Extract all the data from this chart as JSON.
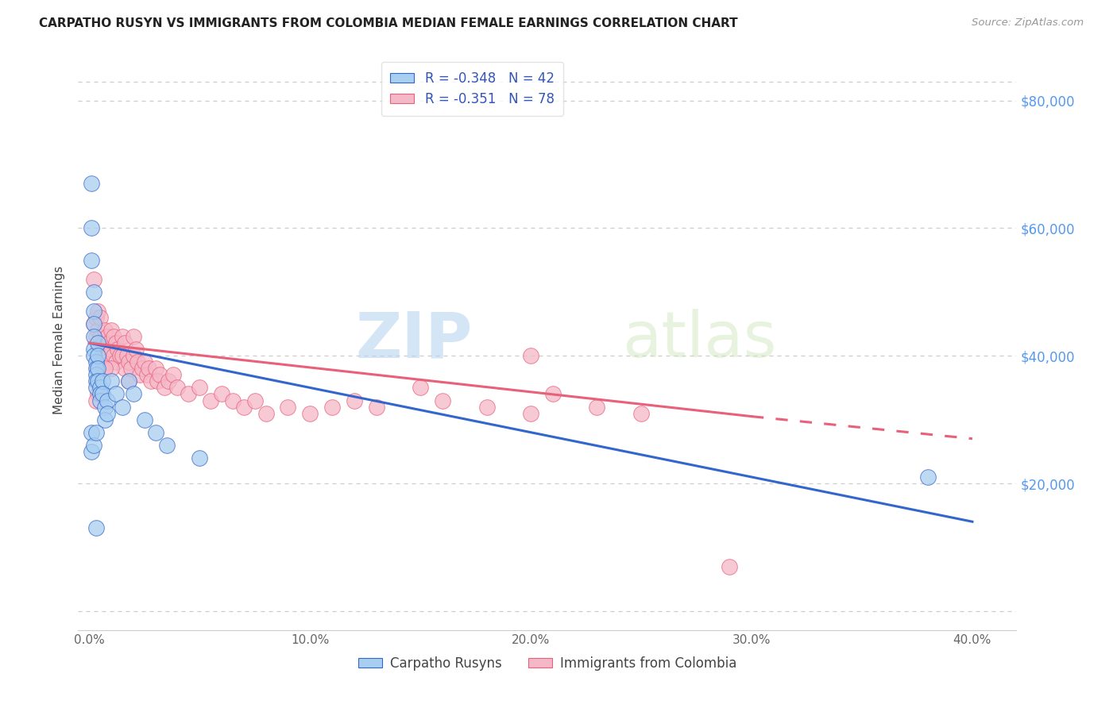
{
  "title": "CARPATHO RUSYN VS IMMIGRANTS FROM COLOMBIA MEDIAN FEMALE EARNINGS CORRELATION CHART",
  "source": "Source: ZipAtlas.com",
  "ylabel": "Median Female Earnings",
  "ytick_labels": [
    "$20,000",
    "$40,000",
    "$60,000",
    "$80,000"
  ],
  "ytick_values": [
    20000,
    40000,
    60000,
    80000
  ],
  "legend_label_blue": "Carpatho Rusyns",
  "legend_label_pink": "Immigrants from Colombia",
  "blue_color": "#a8cef0",
  "pink_color": "#f5b8c8",
  "blue_line_color": "#3366cc",
  "pink_line_color": "#e8607a",
  "blue_R": "-0.348",
  "blue_N": "42",
  "pink_R": "-0.351",
  "pink_N": "78",
  "blue_x": [
    0.001,
    0.001,
    0.001,
    0.002,
    0.002,
    0.002,
    0.002,
    0.002,
    0.002,
    0.003,
    0.003,
    0.003,
    0.003,
    0.003,
    0.004,
    0.004,
    0.004,
    0.004,
    0.005,
    0.005,
    0.005,
    0.006,
    0.006,
    0.007,
    0.007,
    0.008,
    0.008,
    0.01,
    0.012,
    0.015,
    0.018,
    0.02,
    0.025,
    0.03,
    0.035,
    0.05,
    0.001,
    0.001,
    0.002,
    0.003,
    0.38,
    0.003
  ],
  "blue_y": [
    67000,
    60000,
    55000,
    50000,
    47000,
    45000,
    43000,
    41000,
    40000,
    39000,
    38000,
    37000,
    36000,
    35000,
    42000,
    40000,
    38000,
    36000,
    35000,
    34000,
    33000,
    36000,
    34000,
    32000,
    30000,
    33000,
    31000,
    36000,
    34000,
    32000,
    36000,
    34000,
    30000,
    28000,
    26000,
    24000,
    28000,
    25000,
    26000,
    28000,
    21000,
    13000
  ],
  "pink_x": [
    0.002,
    0.002,
    0.003,
    0.003,
    0.004,
    0.004,
    0.004,
    0.005,
    0.005,
    0.006,
    0.006,
    0.006,
    0.007,
    0.007,
    0.008,
    0.008,
    0.008,
    0.009,
    0.009,
    0.01,
    0.01,
    0.011,
    0.011,
    0.012,
    0.012,
    0.013,
    0.014,
    0.015,
    0.015,
    0.016,
    0.016,
    0.017,
    0.018,
    0.018,
    0.019,
    0.02,
    0.02,
    0.021,
    0.022,
    0.023,
    0.024,
    0.025,
    0.026,
    0.027,
    0.028,
    0.03,
    0.031,
    0.032,
    0.034,
    0.036,
    0.038,
    0.04,
    0.045,
    0.05,
    0.055,
    0.06,
    0.065,
    0.07,
    0.075,
    0.08,
    0.09,
    0.1,
    0.11,
    0.12,
    0.13,
    0.15,
    0.16,
    0.18,
    0.2,
    0.21,
    0.23,
    0.25,
    0.01,
    0.007,
    0.004,
    0.003,
    0.2,
    0.29
  ],
  "pink_y": [
    52000,
    45000,
    46000,
    43000,
    47000,
    44000,
    41000,
    46000,
    43000,
    42000,
    40000,
    38000,
    44000,
    42000,
    43000,
    41000,
    39000,
    42000,
    40000,
    44000,
    41000,
    43000,
    40000,
    42000,
    39000,
    41000,
    40000,
    43000,
    40000,
    42000,
    38000,
    40000,
    39000,
    36000,
    38000,
    43000,
    40000,
    41000,
    39000,
    37000,
    38000,
    39000,
    37000,
    38000,
    36000,
    38000,
    36000,
    37000,
    35000,
    36000,
    37000,
    35000,
    34000,
    35000,
    33000,
    34000,
    33000,
    32000,
    33000,
    31000,
    32000,
    31000,
    32000,
    33000,
    32000,
    35000,
    33000,
    32000,
    31000,
    34000,
    32000,
    31000,
    38000,
    38000,
    34000,
    33000,
    40000,
    7000
  ],
  "blue_line_x0": 0.0,
  "blue_line_y0": 42000,
  "blue_line_x1": 0.4,
  "blue_line_y1": 14000,
  "pink_line_x0": 0.0,
  "pink_line_y0": 42000,
  "pink_line_x1_solid": 0.3,
  "pink_line_y1_solid": 30500,
  "pink_line_x1_dash": 0.4,
  "pink_line_y1_dash": 27000,
  "grid_color": "#cccccc",
  "border_dashes_y": [
    0,
    20000,
    40000,
    60000,
    80000
  ],
  "xmin": -0.005,
  "xmax": 0.42,
  "ymin": -3000,
  "ymax": 88000,
  "xticks": [
    0.0,
    0.1,
    0.2,
    0.3,
    0.4
  ],
  "xtick_labels": [
    "0.0%",
    "10.0%",
    "20.0%",
    "30.0%",
    "40.0%"
  ]
}
